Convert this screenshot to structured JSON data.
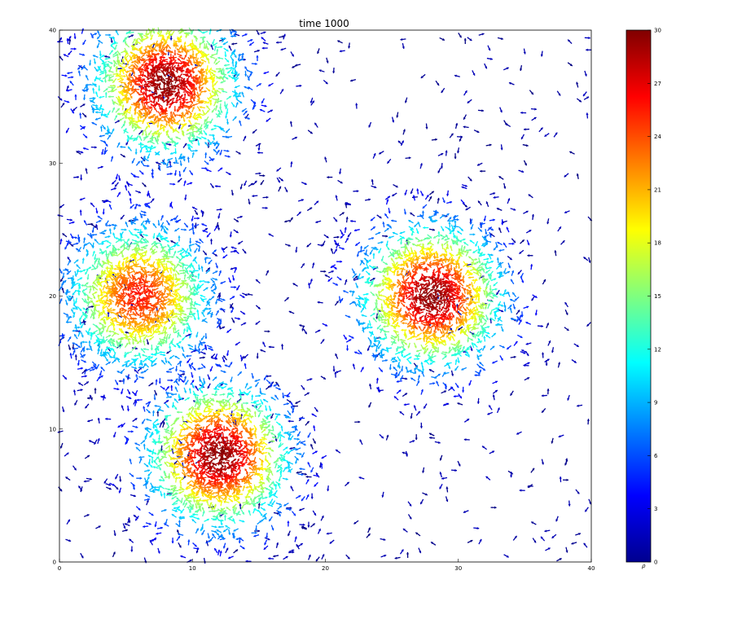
{
  "chart_data": {
    "type": "scatter",
    "title": "time 1000",
    "xlabel": "",
    "ylabel": "",
    "xlim": [
      0,
      40
    ],
    "ylim": [
      0,
      40
    ],
    "x_ticks": [
      "0",
      "10",
      "20",
      "30",
      "40"
    ],
    "y_ticks": [
      "0",
      "10",
      "20",
      "30",
      "40"
    ],
    "grid": false,
    "marker": "arrow",
    "colormap": "jet",
    "colorbar": {
      "label": "ρ",
      "min": 0,
      "max": 30,
      "ticks": [
        "0",
        "3",
        "6",
        "9",
        "12",
        "15",
        "18",
        "21",
        "24",
        "27",
        "30"
      ]
    },
    "clusters": [
      {
        "center": [
          8,
          36
        ],
        "peak_density": 29
      },
      {
        "center": [
          6,
          20
        ],
        "peak_density": 25
      },
      {
        "center": [
          28,
          20
        ],
        "peak_density": 29
      },
      {
        "center": [
          12,
          8
        ],
        "peak_density": 29
      }
    ],
    "colors": {
      "low": "#00008f",
      "high": "#800000",
      "axis": "#000000"
    }
  }
}
